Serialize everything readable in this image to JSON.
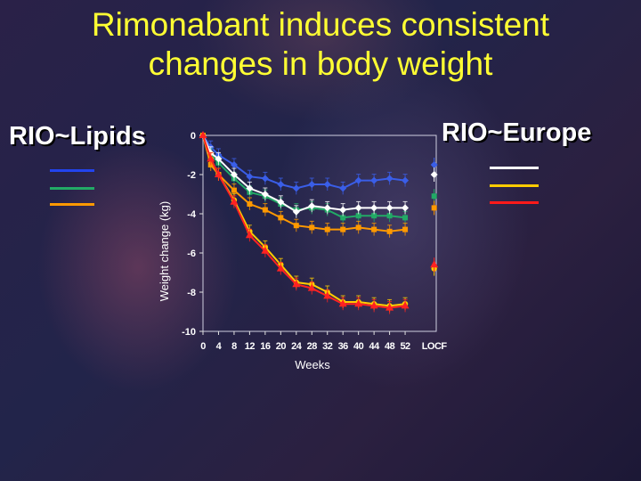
{
  "title": "Rimonabant induces consistent changes in body weight",
  "title_line1": "Rimonabant induces consistent",
  "title_line2": "changes in body weight",
  "left_group": {
    "label": "RIO~Lipids",
    "lines": [
      {
        "name": "",
        "color": "#2244ee"
      },
      {
        "name": "",
        "color": "#22aa66"
      },
      {
        "name": "",
        "color": "#ff9900"
      }
    ]
  },
  "right_group": {
    "label": "RIO~Europe",
    "lines": [
      {
        "name": "",
        "color": "#ffffff"
      },
      {
        "name": "",
        "color": "#ffcc00"
      },
      {
        "name": "",
        "color": "#ff1a1a"
      }
    ]
  },
  "chart_data": {
    "type": "line",
    "xlabel": "Weeks",
    "ylabel": "Weight change (kg)",
    "ylim": [
      -10,
      0
    ],
    "yticks": [
      0,
      -2,
      -4,
      -6,
      -8,
      -10
    ],
    "xticks": [
      "0",
      "4",
      "8",
      "12",
      "16",
      "20",
      "24",
      "28",
      "32",
      "36",
      "40",
      "44",
      "48",
      "52",
      "LOCF"
    ],
    "x": [
      0,
      2,
      4,
      8,
      12,
      16,
      20,
      24,
      28,
      32,
      36,
      40,
      44,
      48,
      52
    ],
    "grid": false,
    "series": [
      {
        "name": "",
        "group": "RIO~Lipids",
        "color": "#3a5ee8",
        "marker": "diamond",
        "values": [
          0,
          -0.6,
          -1.0,
          -1.5,
          -2.1,
          -2.2,
          -2.5,
          -2.7,
          -2.5,
          -2.5,
          -2.7,
          -2.3,
          -2.3,
          -2.2,
          -2.3
        ],
        "locf": -1.5
      },
      {
        "name": "",
        "group": "RIO~Lipids",
        "color": "#22aa66",
        "marker": "square",
        "values": [
          0,
          -1.0,
          -1.4,
          -2.2,
          -2.9,
          -3.1,
          -3.5,
          -3.8,
          -3.7,
          -3.8,
          -4.2,
          -4.1,
          -4.1,
          -4.1,
          -4.2
        ],
        "locf": -3.1
      },
      {
        "name": "",
        "group": "RIO~Lipids",
        "color": "#ff9900",
        "marker": "square",
        "values": [
          0,
          -1.5,
          -2.0,
          -2.8,
          -3.5,
          -3.8,
          -4.2,
          -4.6,
          -4.7,
          -4.8,
          -4.8,
          -4.7,
          -4.8,
          -4.9,
          -4.8
        ],
        "locf": -3.7
      },
      {
        "name": "",
        "group": "RIO~Europe",
        "color": "#ffffff",
        "marker": "diamond",
        "values": [
          0,
          -0.9,
          -1.2,
          -2.0,
          -2.7,
          -3.0,
          -3.4,
          -3.9,
          -3.6,
          -3.7,
          -3.8,
          -3.7,
          -3.7,
          -3.7,
          -3.7
        ],
        "locf": -2.0
      },
      {
        "name": "",
        "group": "RIO~Europe",
        "color": "#ffcc00",
        "marker": "circle",
        "values": [
          0,
          -1.2,
          -2.0,
          -3.3,
          -4.9,
          -5.7,
          -6.6,
          -7.5,
          -7.6,
          -8.0,
          -8.5,
          -8.5,
          -8.6,
          -8.7,
          -8.6
        ],
        "locf": -6.8
      },
      {
        "name": "",
        "group": "RIO~Europe",
        "color": "#ff2222",
        "marker": "triangle",
        "values": [
          0,
          -1.2,
          -2.0,
          -3.4,
          -5.1,
          -5.9,
          -6.8,
          -7.6,
          -7.8,
          -8.2,
          -8.6,
          -8.6,
          -8.7,
          -8.8,
          -8.7
        ],
        "locf": -6.6
      }
    ]
  }
}
